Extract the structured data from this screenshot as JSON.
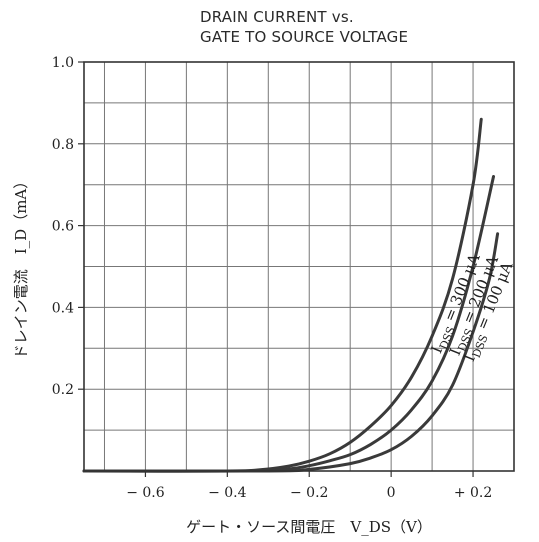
{
  "chart_data": {
    "type": "line",
    "title": [
      "DRAIN CURRENT vs.",
      "GATE TO SOURCE VOLTAGE"
    ],
    "xlabel": "ゲート・ソース間電圧　V_DS（V）",
    "ylabel": "ドレイン電流　I_D（mA）",
    "xlim": [
      -0.75,
      0.3
    ],
    "ylim": [
      0,
      1.0
    ],
    "x_ticks": [
      {
        "value": -0.6,
        "label": "− 0.6"
      },
      {
        "value": -0.4,
        "label": "− 0.4"
      },
      {
        "value": -0.2,
        "label": "− 0.2"
      },
      {
        "value": 0,
        "label": "0"
      },
      {
        "value": 0.2,
        "label": "+ 0.2"
      }
    ],
    "y_ticks": [
      {
        "value": 0.2,
        "label": "0.2"
      },
      {
        "value": 0.4,
        "label": "0.4"
      },
      {
        "value": 0.6,
        "label": "0.6"
      },
      {
        "value": 0.8,
        "label": "0.8"
      },
      {
        "value": 1.0,
        "label": "1.0"
      }
    ],
    "grid": true,
    "grid_x_step": 0.1,
    "grid_y_step": 0.1,
    "series": [
      {
        "name": "I_DSS = 300 μA",
        "label_parts": {
          "main": "I",
          "sub": "DSS",
          "rest": " = 300 μA"
        },
        "points": [
          [
            -0.75,
            0.0
          ],
          [
            -0.4,
            0.0
          ],
          [
            -0.32,
            0.003
          ],
          [
            -0.25,
            0.012
          ],
          [
            -0.2,
            0.024
          ],
          [
            -0.15,
            0.042
          ],
          [
            -0.1,
            0.07
          ],
          [
            -0.05,
            0.11
          ],
          [
            0.0,
            0.16
          ],
          [
            0.05,
            0.23
          ],
          [
            0.1,
            0.33
          ],
          [
            0.15,
            0.47
          ],
          [
            0.2,
            0.7
          ],
          [
            0.22,
            0.86
          ]
        ]
      },
      {
        "name": "I_DSS = 200 μA",
        "label_parts": {
          "main": "I",
          "sub": "DSS",
          "rest": " = 200 μA"
        },
        "points": [
          [
            -0.75,
            0.0
          ],
          [
            -0.35,
            0.0
          ],
          [
            -0.25,
            0.005
          ],
          [
            -0.2,
            0.013
          ],
          [
            -0.15,
            0.025
          ],
          [
            -0.1,
            0.04
          ],
          [
            -0.05,
            0.065
          ],
          [
            0.0,
            0.1
          ],
          [
            0.05,
            0.15
          ],
          [
            0.1,
            0.22
          ],
          [
            0.15,
            0.33
          ],
          [
            0.2,
            0.5
          ],
          [
            0.25,
            0.72
          ]
        ]
      },
      {
        "name": "I_DSS = 100 μA",
        "label_parts": {
          "main": "I",
          "sub": "DSS",
          "rest": " = 100 μA"
        },
        "points": [
          [
            -0.75,
            0.0
          ],
          [
            -0.3,
            0.0
          ],
          [
            -0.2,
            0.004
          ],
          [
            -0.1,
            0.018
          ],
          [
            -0.05,
            0.032
          ],
          [
            0.0,
            0.052
          ],
          [
            0.05,
            0.085
          ],
          [
            0.1,
            0.135
          ],
          [
            0.15,
            0.21
          ],
          [
            0.2,
            0.34
          ],
          [
            0.24,
            0.47
          ],
          [
            0.26,
            0.58
          ]
        ]
      }
    ],
    "curve_label_anchor_x": [
      0.12,
      0.165,
      0.2
    ],
    "curve_label_anchor_y": [
      0.285,
      0.28,
      0.265
    ]
  }
}
